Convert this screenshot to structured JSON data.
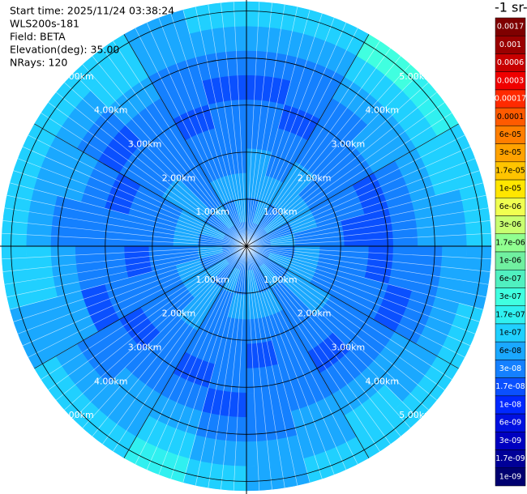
{
  "chart_data": {
    "type": "polar-mesh",
    "texts": [
      "Start time: 2025/11/24 03:38:24",
      "WLS200s-181",
      "Field: BETA",
      "Elevation(deg): 35.00",
      "NRays: 120"
    ],
    "colorbar_label": "-1 sr-",
    "rlim": [
      0,
      5.2
    ],
    "rticks": [
      {
        "value": 1,
        "label": "1.00km"
      },
      {
        "value": 2,
        "label": "2.00km"
      },
      {
        "value": 3,
        "label": "3.00km"
      },
      {
        "value": 4,
        "label": "4.00km"
      },
      {
        "value": 5,
        "label": "5.00km"
      }
    ],
    "colorbar": {
      "ticks": [
        {
          "value": 0.0017,
          "label": "0.0017"
        },
        {
          "value": 0.001,
          "label": "0.001"
        },
        {
          "value": 0.0006,
          "label": "0.0006"
        },
        {
          "value": 0.0003,
          "label": "0.0003"
        },
        {
          "value": 0.00017,
          "label": "0.00017"
        },
        {
          "value": 0.0001,
          "label": "0.0001"
        },
        {
          "value": 6e-05,
          "label": "6e-05"
        },
        {
          "value": 3e-05,
          "label": "3e-05"
        },
        {
          "value": 1.7e-05,
          "label": "1.7e-05"
        },
        {
          "value": 1e-05,
          "label": "1e-05"
        },
        {
          "value": 6e-06,
          "label": "6e-06"
        },
        {
          "value": 3e-06,
          "label": "3e-06"
        },
        {
          "value": 1.7e-06,
          "label": "1.7e-06"
        },
        {
          "value": 1e-06,
          "label": "1e-06"
        },
        {
          "value": 6e-07,
          "label": "6e-07"
        },
        {
          "value": 3e-07,
          "label": "3e-07"
        },
        {
          "value": 1.7e-07,
          "label": "1.7e-07"
        },
        {
          "value": 1e-07,
          "label": "1e-07"
        },
        {
          "value": 6e-08,
          "label": "6e-08"
        },
        {
          "value": 3e-08,
          "label": "3e-08"
        },
        {
          "value": 1.7e-08,
          "label": "1.7e-08"
        },
        {
          "value": 1e-08,
          "label": "1e-08"
        },
        {
          "value": 6e-09,
          "label": "6e-09"
        },
        {
          "value": 3e-09,
          "label": "3e-09"
        },
        {
          "value": 1.7e-09,
          "label": "1.7e-09"
        },
        {
          "value": 1e-09,
          "label": "1e-09"
        }
      ],
      "colors": [
        "#7f0000",
        "#9a0000",
        "#c80000",
        "#f00000",
        "#ff2a00",
        "#ff5a00",
        "#ff7e00",
        "#ffa200",
        "#ffc400",
        "#ffe600",
        "#f0ff50",
        "#c8ff70",
        "#90ff90",
        "#70f0a0",
        "#50f0c0",
        "#40ffe0",
        "#30f0f0",
        "#20d0ff",
        "#1aa8ff",
        "#1480ff",
        "#0a50ff",
        "#0028ff",
        "#0010e0",
        "#0000c0",
        "#000098",
        "#000070"
      ]
    },
    "azimuth_edges": [
      0,
      15,
      30,
      45,
      60,
      75,
      90,
      105,
      120,
      135,
      150,
      165,
      180,
      195,
      210,
      225,
      240,
      255,
      270,
      285,
      300,
      315,
      330,
      345,
      360
    ],
    "range_edges": [
      0,
      0.52,
      1.04,
      1.56,
      2.08,
      2.6,
      3.12,
      3.64,
      4.16,
      4.68,
      5.2
    ],
    "values": [
      [
        3e-08,
        3e-08,
        6e-08,
        6e-08,
        3e-08,
        3e-08,
        1.7e-08,
        3e-08,
        6e-08,
        1e-07
      ],
      [
        3e-08,
        6e-08,
        6e-08,
        3e-08,
        3e-08,
        1.7e-08,
        3e-08,
        3e-08,
        6e-08,
        1e-07
      ],
      [
        3e-08,
        3e-08,
        6e-08,
        6e-08,
        3e-08,
        3e-08,
        3e-08,
        6e-08,
        1e-07,
        3e-07
      ],
      [
        3e-08,
        6e-08,
        6e-08,
        3e-08,
        3e-08,
        3e-08,
        6e-08,
        6e-08,
        1e-07,
        1.7e-07
      ],
      [
        3e-08,
        3e-08,
        6e-08,
        3e-08,
        3e-08,
        1.7e-08,
        3e-08,
        6e-08,
        1e-07,
        1e-07
      ],
      [
        3e-08,
        6e-08,
        3e-08,
        3e-08,
        1.7e-08,
        1.7e-08,
        3e-08,
        6e-08,
        6e-08,
        1e-07
      ],
      [
        3e-08,
        3e-08,
        6e-08,
        3e-08,
        3e-08,
        1.7e-08,
        3e-08,
        3e-08,
        6e-08,
        6e-08
      ],
      [
        3e-08,
        6e-08,
        6e-08,
        3e-08,
        3e-08,
        3e-08,
        1.7e-08,
        3e-08,
        6e-08,
        1e-07
      ],
      [
        3e-08,
        3e-08,
        6e-08,
        6e-08,
        3e-08,
        3e-08,
        3e-08,
        6e-08,
        6e-08,
        1e-07
      ],
      [
        3e-08,
        6e-08,
        3e-08,
        3e-08,
        3e-08,
        1.7e-08,
        3e-08,
        6e-08,
        1e-07,
        1e-07
      ],
      [
        3e-08,
        3e-08,
        6e-08,
        3e-08,
        3e-08,
        3e-08,
        3e-08,
        6e-08,
        6e-08,
        1e-07
      ],
      [
        3e-08,
        6e-08,
        6e-08,
        3e-08,
        1.7e-08,
        3e-08,
        3e-08,
        3e-08,
        6e-08,
        6e-08
      ],
      [
        3e-08,
        3e-08,
        6e-08,
        3e-08,
        3e-08,
        3e-08,
        1.7e-08,
        3e-08,
        6e-08,
        1e-07
      ],
      [
        3e-08,
        6e-08,
        3e-08,
        3e-08,
        3e-08,
        1.7e-08,
        3e-08,
        6e-08,
        1e-07,
        1.7e-07
      ],
      [
        3e-08,
        3e-08,
        6e-08,
        6e-08,
        3e-08,
        3e-08,
        3e-08,
        6e-08,
        6e-08,
        1e-07
      ],
      [
        3e-08,
        6e-08,
        6e-08,
        3e-08,
        3e-08,
        1.7e-08,
        3e-08,
        3e-08,
        6e-08,
        1e-07
      ],
      [
        3e-08,
        3e-08,
        6e-08,
        3e-08,
        3e-08,
        3e-08,
        1.7e-08,
        6e-08,
        6e-08,
        6e-08
      ],
      [
        3e-08,
        6e-08,
        3e-08,
        3e-08,
        1.7e-08,
        3e-08,
        3e-08,
        6e-08,
        1e-07,
        1e-07
      ],
      [
        3e-08,
        3e-08,
        6e-08,
        3e-08,
        3e-08,
        3e-08,
        3e-08,
        3e-08,
        6e-08,
        1e-07
      ],
      [
        3e-08,
        6e-08,
        6e-08,
        3e-08,
        3e-08,
        1.7e-08,
        3e-08,
        6e-08,
        6e-08,
        1e-07
      ],
      [
        3e-08,
        3e-08,
        6e-08,
        6e-08,
        3e-08,
        3e-08,
        1.7e-08,
        3e-08,
        6e-08,
        1e-07
      ],
      [
        3e-08,
        6e-08,
        3e-08,
        3e-08,
        3e-08,
        3e-08,
        3e-08,
        6e-08,
        1e-07,
        1e-07
      ],
      [
        3e-08,
        3e-08,
        6e-08,
        3e-08,
        3e-08,
        1.7e-08,
        3e-08,
        3e-08,
        6e-08,
        6e-08
      ],
      [
        3e-08,
        6e-08,
        6e-08,
        3e-08,
        3e-08,
        3e-08,
        1.7e-08,
        3e-08,
        6e-08,
        1e-07
      ]
    ]
  }
}
